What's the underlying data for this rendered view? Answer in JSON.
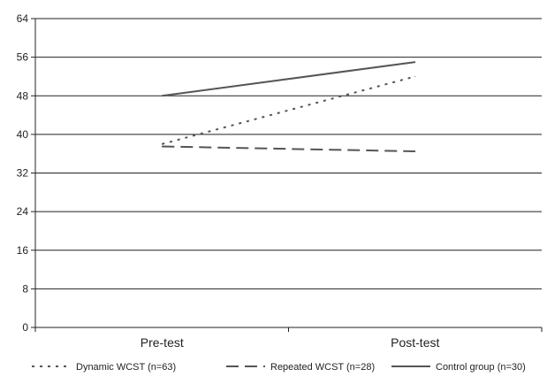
{
  "chart_data": {
    "type": "line",
    "categories": [
      "Pre-test",
      "Post-test"
    ],
    "ylim": [
      0,
      64
    ],
    "yticks": [
      0,
      8,
      16,
      24,
      32,
      40,
      48,
      56,
      64
    ],
    "grid": true,
    "legend_position": "bottom",
    "series": [
      {
        "name": "Dynamic WCST (n=63)",
        "values": [
          38,
          52
        ],
        "style": "dotted",
        "color": "#555555"
      },
      {
        "name": "Repeated WCST (n=28)",
        "values": [
          37.5,
          36.5
        ],
        "style": "dashed",
        "color": "#555555"
      },
      {
        "name": "Control group (n=30)",
        "values": [
          48,
          55
        ],
        "style": "solid",
        "color": "#555555"
      }
    ]
  }
}
